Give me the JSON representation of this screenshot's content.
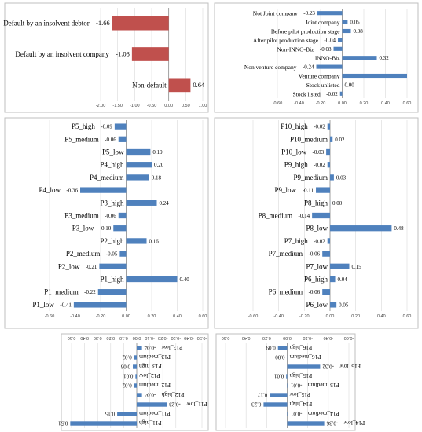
{
  "colors": {
    "red_bar": "#c0504d",
    "blue_bar": "#4f81bd",
    "border": "#bfbfbf"
  },
  "chart_data": [
    {
      "id": "panel-a",
      "type": "bar",
      "orientation": "horizontal",
      "categories": [
        "Default by an insolvent debtor",
        "Default by an insolvent company",
        "Non-default"
      ],
      "values": [
        -1.66,
        -1.08,
        0.64
      ],
      "data_labels": [
        "-1.66",
        "-1.08",
        "0.64"
      ],
      "xlim": [
        -2.0,
        1.0
      ],
      "ticks": [
        "-2.00",
        "-1.50",
        "-1.00",
        "-0.50",
        "0.00",
        "0.50",
        "1.00"
      ],
      "bar_color": "red_bar"
    },
    {
      "id": "panel-b",
      "type": "bar",
      "orientation": "horizontal",
      "categories": [
        "Not Joint company",
        "Joint company",
        "Before pilot production stage",
        "After pilot production stage",
        "Non-INNO-Biz",
        "INNO-Biz",
        "Non venture company",
        "Venture company",
        "Stock unlisted",
        "Stock listed"
      ],
      "values": [
        -0.23,
        0.05,
        0.08,
        -0.04,
        -0.08,
        0.32,
        -0.24,
        0.6,
        0.0,
        -0.02
      ],
      "data_labels": [
        "-0.23",
        "0.05",
        "0.08",
        "-0.04",
        "-0.08",
        "0.32",
        "-0.24",
        "",
        "0.00",
        "-0.02"
      ],
      "xlim": [
        -0.6,
        0.6
      ],
      "ticks": [
        "-0.60",
        "-0.40",
        "-0.20",
        "0.00",
        "0.20",
        "0.40",
        "0.60"
      ],
      "bar_color": "blue_bar"
    },
    {
      "id": "panel-c",
      "type": "bar",
      "orientation": "horizontal",
      "categories": [
        "P5_high",
        "P5_medium",
        "P5_low",
        "P4_high",
        "P4_medium",
        "P4_low",
        "P3_high",
        "P3_medium",
        "P3_low",
        "P2_high",
        "P2_medium",
        "P2_low",
        "P1_high",
        "P1_medium",
        "P1_low"
      ],
      "values": [
        -0.09,
        -0.06,
        0.19,
        0.2,
        0.18,
        -0.36,
        0.24,
        -0.06,
        -0.1,
        0.16,
        -0.05,
        -0.21,
        0.4,
        -0.22,
        -0.41
      ],
      "data_labels": [
        "-0.09",
        "-0.06",
        "0.19",
        "0.20",
        "0.18",
        "-0.36",
        "0.24",
        "-0.06",
        "-0.10",
        "0.16",
        "-0.05",
        "-0.21",
        "0.40",
        "-0.22",
        "-0.41"
      ],
      "xlim": [
        -0.6,
        0.6
      ],
      "ticks": [
        "-0.60",
        "-0.40",
        "-0.20",
        "0.00",
        "0.20",
        "0.40",
        "0.60"
      ],
      "bar_color": "blue_bar"
    },
    {
      "id": "panel-d",
      "type": "bar",
      "orientation": "horizontal",
      "categories": [
        "P10_high",
        "P10_medium",
        "P10_low",
        "P9_high",
        "P9_medium",
        "P9_low",
        "P8_high",
        "P8_medium",
        "P8_low",
        "P7_high",
        "P7_medium",
        "P7_low",
        "P6_high",
        "P6_medium",
        "P6_low"
      ],
      "values": [
        -0.02,
        0.02,
        -0.03,
        -0.02,
        0.03,
        -0.11,
        0.0,
        -0.14,
        0.48,
        -0.02,
        -0.06,
        0.15,
        0.04,
        -0.06,
        0.05
      ],
      "data_labels": [
        "-0.02",
        "0.02",
        "-0.03",
        "-0.02",
        "0.03",
        "-0.11",
        "0.00",
        "-0.14",
        "0.48",
        "-0.02",
        "-0.06",
        "0.15",
        "0.04",
        "-0.06",
        "0.05"
      ],
      "xlim": [
        -0.6,
        0.6
      ],
      "ticks": [
        "-0.60",
        "-0.40",
        "-0.20",
        "0.00",
        "0.20",
        "0.40",
        "0.60"
      ],
      "bar_color": "blue_bar"
    },
    {
      "id": "panel-e",
      "type": "bar",
      "orientation": "horizontal",
      "rotated_180": true,
      "categories": [
        "P11_high",
        "P11_medium",
        "P11_low",
        "P12_high",
        "P12_medium",
        "P12_low",
        "P13_high",
        "P13_medium",
        "P13_low"
      ],
      "values": [
        0.51,
        0.15,
        -0.23,
        -0.04,
        0.02,
        0.01,
        0.03,
        0.02,
        -0.04
      ],
      "data_labels": [
        "0.51",
        "0.15",
        "-0.23",
        "-0.04",
        "0.02",
        "0.01",
        "0.03",
        "0.02",
        "-0.04"
      ],
      "xlim": [
        -0.5,
        0.5
      ],
      "ticks": [
        "-0.50",
        "-0.40",
        "-0.30",
        "-0.20",
        "-0.10",
        "0.00",
        "0.10",
        "0.20",
        "0.30",
        "0.40",
        "0.50"
      ],
      "bar_color": "blue_bar"
    },
    {
      "id": "panel-f",
      "type": "bar",
      "orientation": "horizontal",
      "rotated_180": true,
      "categories": [
        "P14_low",
        "P14_medium",
        "P14_high",
        "P15_low",
        "P15_medium",
        "P15_high",
        "P16_low",
        "P16_medium",
        "P16_high"
      ],
      "values": [
        -0.36,
        -0.01,
        0.23,
        0.17,
        -0.01,
        0.01,
        -0.32,
        0.0,
        0.09
      ],
      "data_labels": [
        "-0.36",
        "-0.01",
        "0.23",
        "0.17",
        "-0.01",
        "0.01",
        "-0.32",
        "0.00",
        "0.09"
      ],
      "xlim": [
        -0.6,
        0.6
      ],
      "ticks": [
        "-0.60",
        "-0.40",
        "-0.20",
        "0.00",
        "0.20",
        "0.40",
        "0.60"
      ],
      "bar_color": "blue_bar"
    }
  ]
}
